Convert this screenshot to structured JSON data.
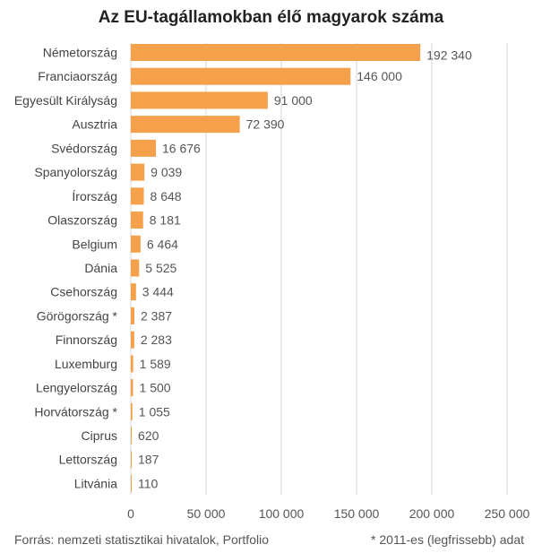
{
  "chart_data": {
    "type": "bar",
    "orientation": "horizontal",
    "title": "Az EU-tagállamokban élő magyarok száma",
    "categories": [
      "Németország",
      "Franciaország",
      "Egyesült Királyság",
      "Ausztria",
      "Svédország",
      "Spanyolország",
      "Írország",
      "Olaszország",
      "Belgium",
      "Dánia",
      "Csehország",
      "Görögország *",
      "Finnország",
      "Luxemburg",
      "Lengyelország",
      "Horvátország *",
      "Ciprus",
      "Lettország",
      "Litvánia"
    ],
    "values": [
      192340,
      146000,
      91000,
      72390,
      16676,
      9039,
      8648,
      8181,
      6464,
      5525,
      3444,
      2387,
      2283,
      1589,
      1500,
      1055,
      620,
      187,
      110
    ],
    "value_labels": [
      "192 340",
      "146 000",
      "91 000",
      "72 390",
      "16 676",
      "9 039",
      "8 648",
      "8 181",
      "6 464",
      "5 525",
      "3 444",
      "2 387",
      "2 283",
      "1 589",
      "1 500",
      "1 055",
      "620",
      "187",
      "110"
    ],
    "x_ticks": [
      0,
      50000,
      100000,
      150000,
      200000,
      250000
    ],
    "x_tick_labels": [
      "0",
      "50 000",
      "100 000",
      "150 000",
      "200 000",
      "250 000"
    ],
    "xlim": [
      0,
      250000
    ],
    "bar_color": "#f5a04a",
    "grid": true,
    "xlabel": "",
    "ylabel": ""
  },
  "footer": {
    "source": "Forrás: nemzeti statisztikai hivatalok, Portfolio",
    "note": "* 2011-es (legfrissebb) adat"
  }
}
